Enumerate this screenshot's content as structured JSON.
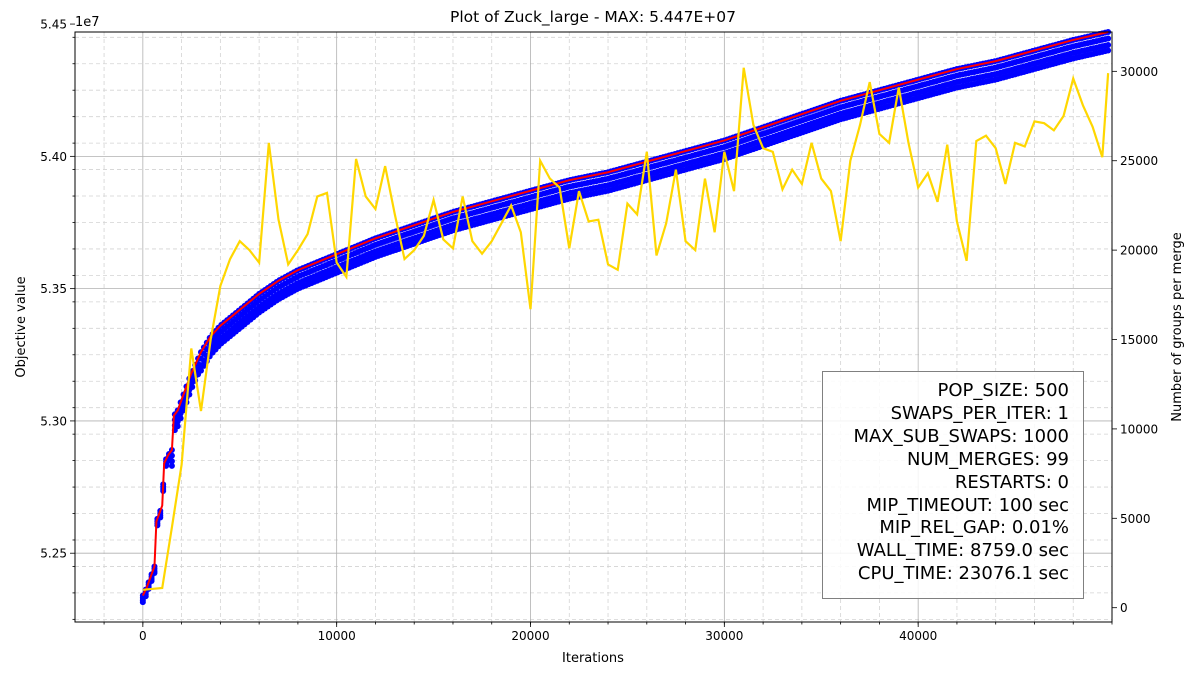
{
  "chart_data": {
    "type": "scatter",
    "title": "Plot of Zuck_large - MAX: 5.447E+07",
    "xlabel": "Iterations",
    "ylabel": "Objective value",
    "ylabel_right": "Number of groups per merge",
    "y_offset_text": "1e7",
    "xlim": [
      -3500,
      50000
    ],
    "ylim": [
      52240000,
      54470000
    ],
    "ylim_right": [
      -800,
      32200
    ],
    "grid": true,
    "x_ticks": [
      0,
      10000,
      20000,
      30000,
      40000
    ],
    "x_tick_labels": [
      "0",
      "10000",
      "20000",
      "30000",
      "40000"
    ],
    "y_ticks": [
      52500000,
      53000000,
      53500000,
      54000000,
      54500000
    ],
    "y_tick_labels": [
      "5.25",
      "5.30",
      "5.35",
      "5.40",
      "5.45"
    ],
    "y_right_ticks": [
      0,
      5000,
      10000,
      15000,
      20000,
      25000,
      30000
    ],
    "y_right_tick_labels": [
      "0",
      "5000",
      "10000",
      "15000",
      "20000",
      "25000",
      "30000"
    ],
    "colors": {
      "population": "#0000ff",
      "best": "#ff0000",
      "groups": "#ffd700",
      "grid": "#b0b0b0"
    },
    "series": [
      {
        "key": "best",
        "axis": "left",
        "x": [
          0,
          200,
          400,
          600,
          700,
          900,
          1000,
          1100,
          1300,
          1500,
          1600,
          1800,
          2000,
          2500,
          3000,
          3500,
          4000,
          5000,
          6000,
          7000,
          8000,
          9000,
          10000,
          12000,
          14000,
          16000,
          18000,
          20000,
          22000,
          24000,
          26000,
          28000,
          30000,
          32000,
          34000,
          36000,
          38000,
          40000,
          42000,
          44000,
          46000,
          48000,
          49800
        ],
        "y": [
          52340000,
          52370000,
          52410000,
          52450000,
          52620000,
          52660000,
          52680000,
          52840000,
          52870000,
          52890000,
          53020000,
          53040000,
          53080000,
          53180000,
          53260000,
          53320000,
          53360000,
          53420000,
          53480000,
          53530000,
          53570000,
          53600000,
          53630000,
          53690000,
          53740000,
          53790000,
          53830000,
          53870000,
          53910000,
          53940000,
          53980000,
          54020000,
          54060000,
          54110000,
          54160000,
          54210000,
          54250000,
          54290000,
          54330000,
          54360000,
          54400000,
          54440000,
          54470000
        ]
      },
      {
        "key": "groups",
        "axis": "right",
        "x": [
          0,
          1000,
          1500,
          2000,
          2500,
          3000,
          3500,
          4000,
          4500,
          5000,
          5500,
          6000,
          6500,
          7000,
          7500,
          8000,
          8500,
          9000,
          9500,
          10000,
          10500,
          11000,
          11500,
          12000,
          12500,
          13000,
          13500,
          14000,
          14500,
          15000,
          15500,
          16000,
          16500,
          17000,
          17500,
          18000,
          18500,
          19000,
          19500,
          20000,
          20500,
          21000,
          21500,
          22000,
          22500,
          23000,
          23500,
          24000,
          24500,
          25000,
          25500,
          26000,
          26500,
          27000,
          27500,
          28000,
          28500,
          29000,
          29500,
          30000,
          30500,
          31000,
          31500,
          32000,
          32500,
          33000,
          33500,
          34000,
          34500,
          35000,
          35500,
          36000,
          36500,
          37000,
          37500,
          38000,
          38500,
          39000,
          39500,
          40000,
          40500,
          41000,
          41500,
          42000,
          42500,
          43000,
          43500,
          44000,
          44500,
          45000,
          45500,
          46000,
          46500,
          47000,
          47500,
          48000,
          48500,
          49000,
          49500,
          49800
        ],
        "y": [
          1000,
          1100,
          4500,
          8000,
          14500,
          11000,
          15000,
          18000,
          19500,
          20500,
          20000,
          19300,
          26000,
          21700,
          19200,
          20000,
          20900,
          23000,
          23200,
          19300,
          18500,
          25100,
          23000,
          22300,
          24700,
          22000,
          19500,
          20000,
          20800,
          22800,
          20600,
          20100,
          23000,
          20500,
          19800,
          20500,
          21500,
          22500,
          21000,
          16700,
          25000,
          24000,
          23500,
          20100,
          23300,
          21600,
          21700,
          19200,
          18900,
          22600,
          22000,
          25500,
          19700,
          21500,
          24500,
          20500,
          20000,
          24000,
          21000,
          25500,
          23300,
          30200,
          27000,
          25700,
          25500,
          23400,
          24500,
          23700,
          26000,
          24000,
          23300,
          20500,
          25000,
          27000,
          29400,
          26500,
          26000,
          29100,
          26000,
          23500,
          24300,
          22700,
          25900,
          21600,
          19400,
          26100,
          26400,
          25700,
          23700,
          26000,
          25800,
          27200,
          27100,
          26700,
          27500,
          29600,
          28100,
          26900,
          25200,
          29900
        ]
      }
    ]
  },
  "params": [
    "POP_SIZE: 500",
    "SWAPS_PER_ITER: 1",
    "MAX_SUB_SWAPS: 1000",
    "NUM_MERGES: 99",
    "RESTARTS: 0",
    "MIP_TIMEOUT: 100 sec",
    "MIP_REL_GAP: 0.01%",
    "WALL_TIME: 8759.0 sec",
    "CPU_TIME: 23076.1 sec"
  ]
}
